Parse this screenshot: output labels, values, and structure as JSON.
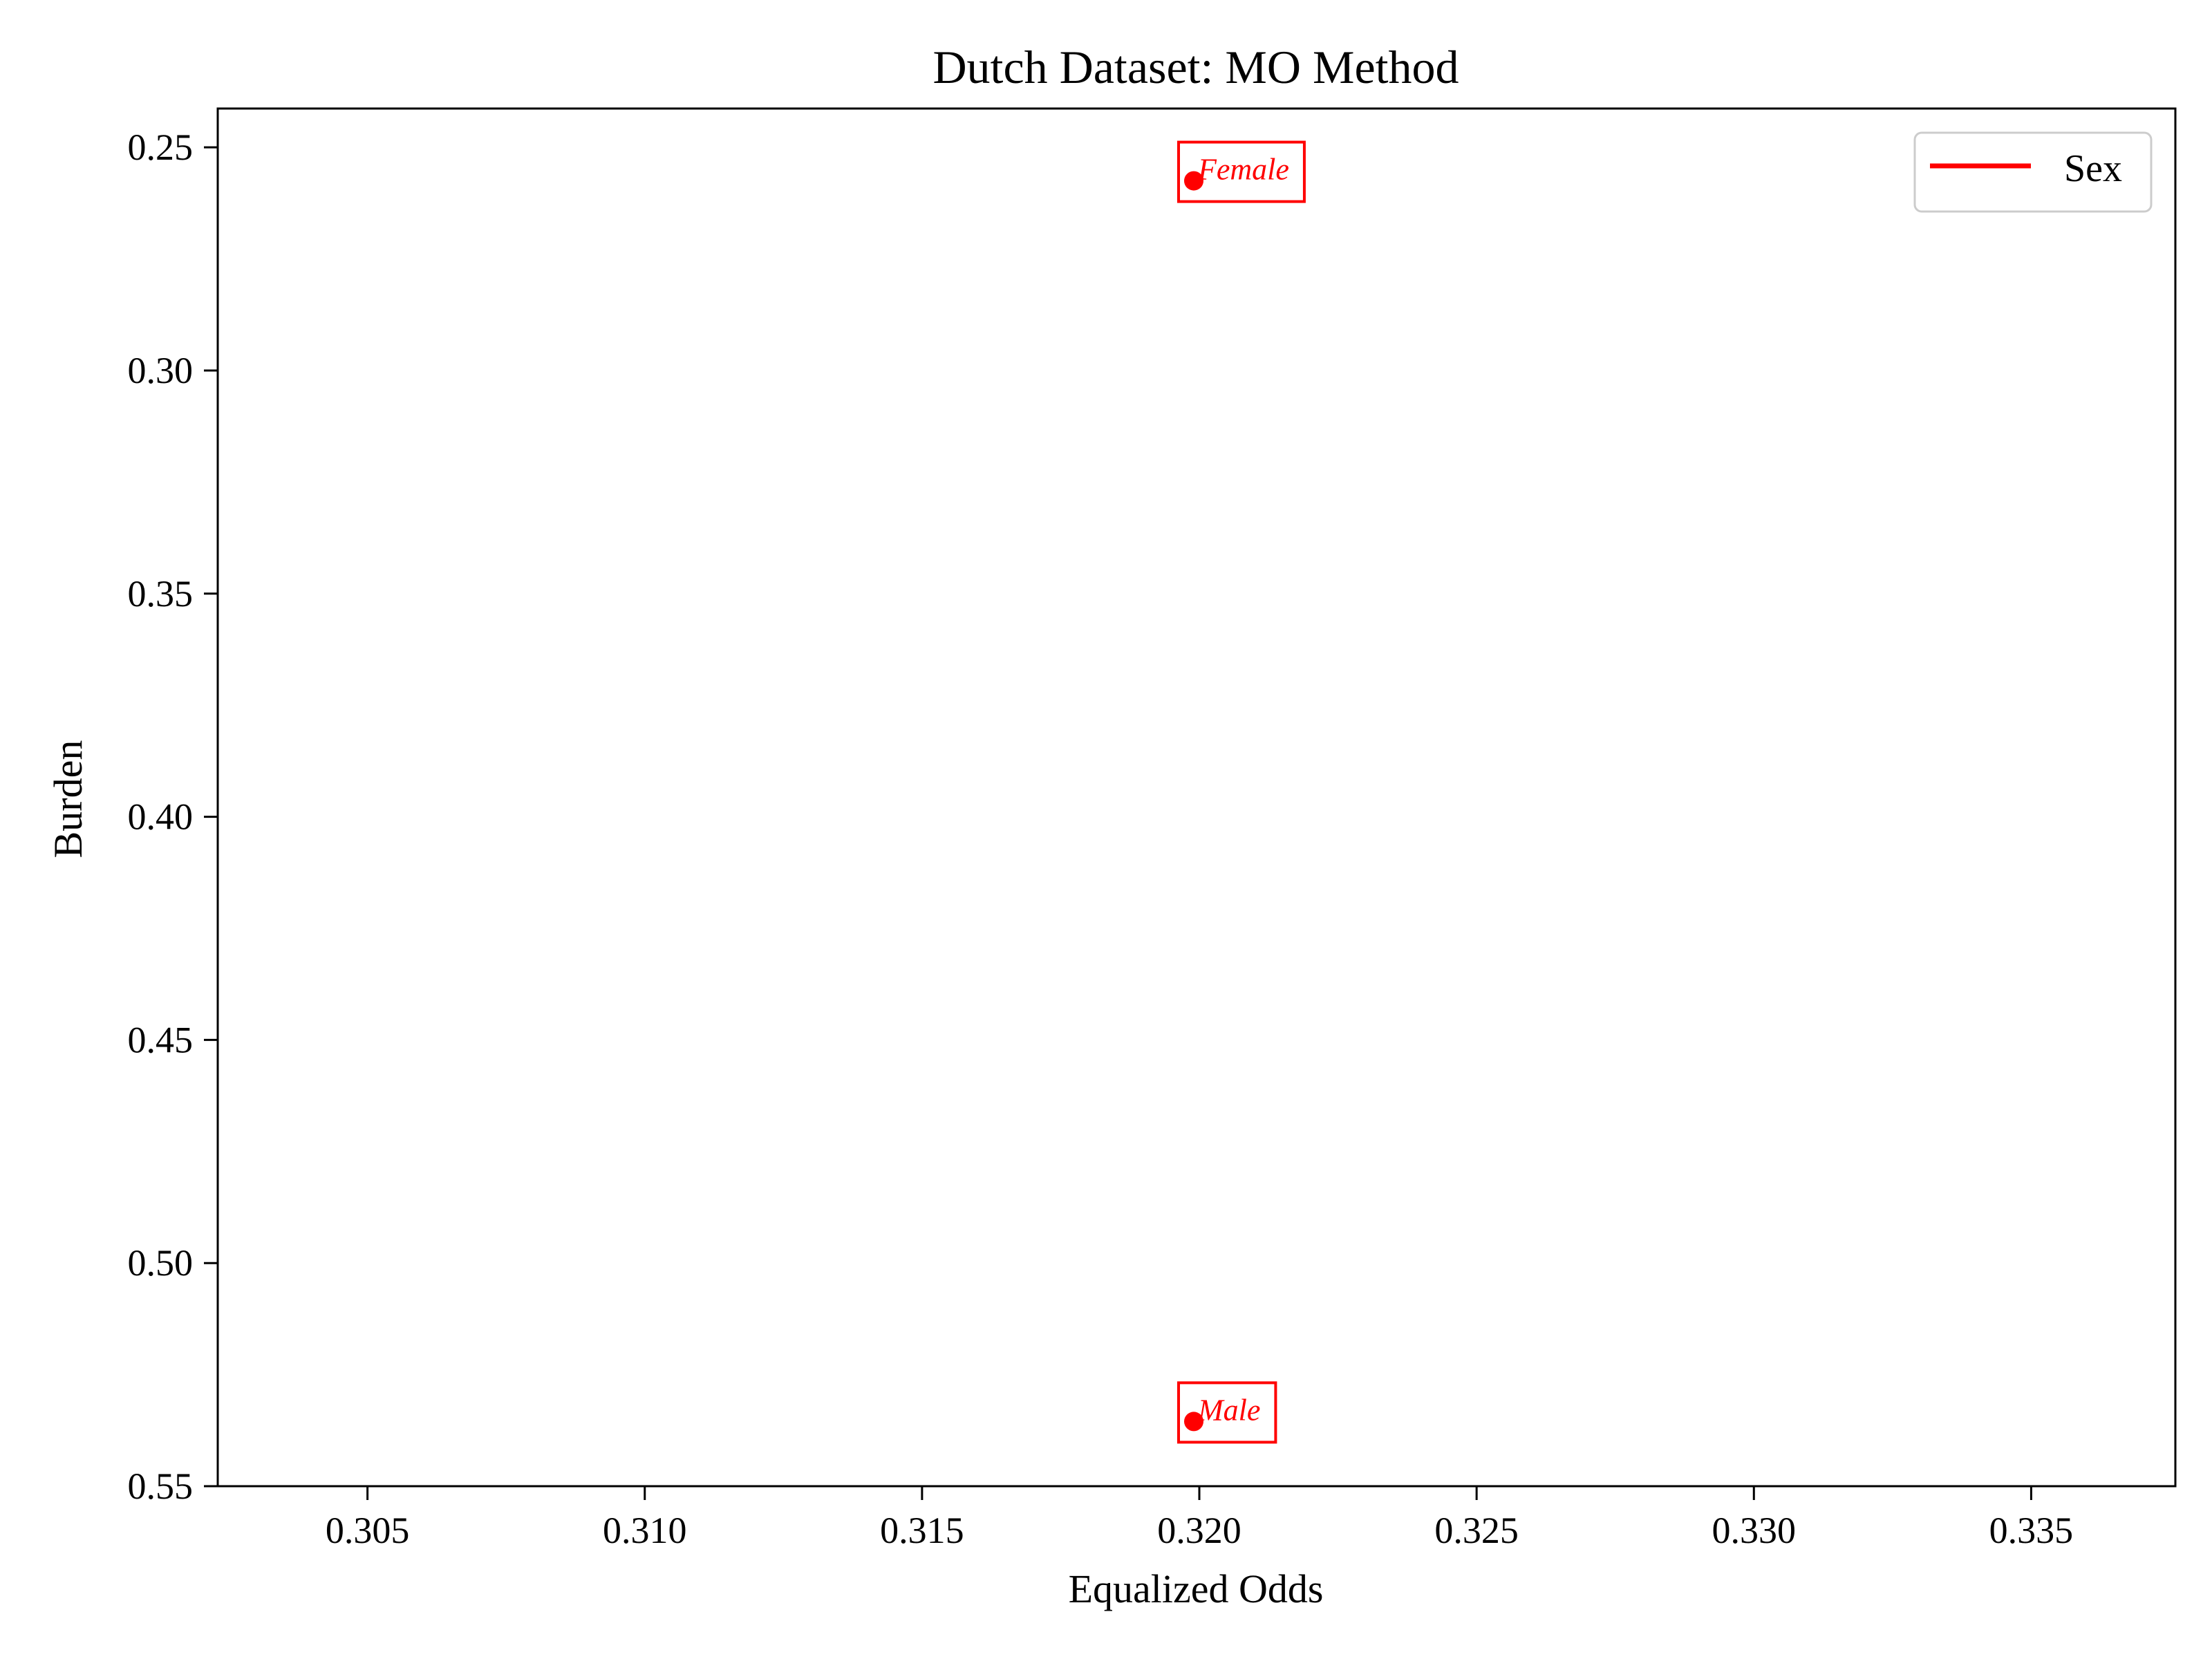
{
  "chart_data": {
    "type": "scatter",
    "title": "Dutch Dataset: MO Method",
    "xlabel": "Equalized Odds",
    "ylabel": "Burden",
    "xlim": [
      0.3023,
      0.3376
    ],
    "ylim": [
      0.55,
      0.2413
    ],
    "y_inverted": true,
    "xticks": [
      0.305,
      0.31,
      0.315,
      0.32,
      0.325,
      0.33,
      0.335
    ],
    "xtick_labels": [
      "0.305",
      "0.310",
      "0.315",
      "0.320",
      "0.325",
      "0.330",
      "0.335"
    ],
    "yticks": [
      0.25,
      0.3,
      0.35,
      0.4,
      0.45,
      0.5,
      0.55
    ],
    "ytick_labels": [
      "0.25",
      "0.30",
      "0.35",
      "0.40",
      "0.45",
      "0.50",
      "0.55"
    ],
    "grid": false,
    "legend": {
      "placement": "top-right",
      "entries": [
        {
          "label": "Sex",
          "color": "#ff0000"
        }
      ]
    },
    "series": [
      {
        "name": "Sex",
        "color": "#ff0000",
        "points": [
          {
            "x": 0.3199,
            "y": 0.2575,
            "label": "Female"
          },
          {
            "x": 0.3199,
            "y": 0.5355,
            "label": "Male"
          }
        ]
      }
    ]
  }
}
